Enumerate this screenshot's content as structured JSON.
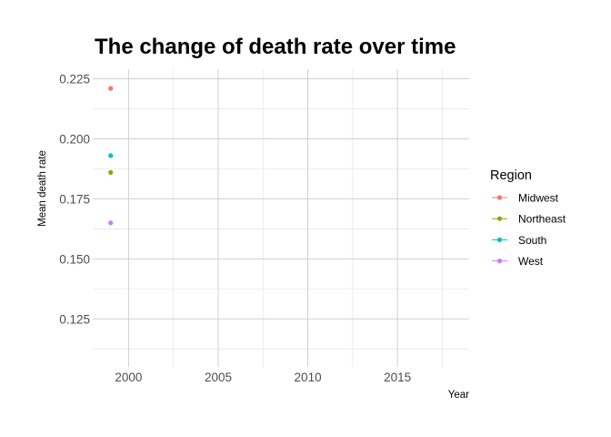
{
  "chart_data": {
    "type": "scatter",
    "title": "The change of death rate over time",
    "xlabel": "Year",
    "ylabel": "Mean death rate",
    "xlim": [
      1998,
      2019
    ],
    "ylim": [
      0.105,
      0.229
    ],
    "xticks": [
      2000,
      2005,
      2010,
      2015
    ],
    "yticks": [
      0.125,
      0.15,
      0.175,
      0.2,
      0.225
    ],
    "ytick_labels": [
      "0.125",
      "0.150",
      "0.175",
      "0.200",
      "0.225"
    ],
    "grid": true,
    "legend": {
      "title": "Region",
      "placement": "right"
    },
    "series": [
      {
        "name": "Midwest",
        "color": "#F8766D",
        "points": [
          {
            "x": 1999,
            "y": 0.221
          }
        ]
      },
      {
        "name": "Northeast",
        "color": "#7CAE00",
        "points": [
          {
            "x": 1999,
            "y": 0.186
          }
        ]
      },
      {
        "name": "South",
        "color": "#00BFC4",
        "points": [
          {
            "x": 1999,
            "y": 0.193
          }
        ]
      },
      {
        "name": "West",
        "color": "#C77CFF",
        "points": [
          {
            "x": 1999,
            "y": 0.165
          }
        ]
      }
    ]
  }
}
